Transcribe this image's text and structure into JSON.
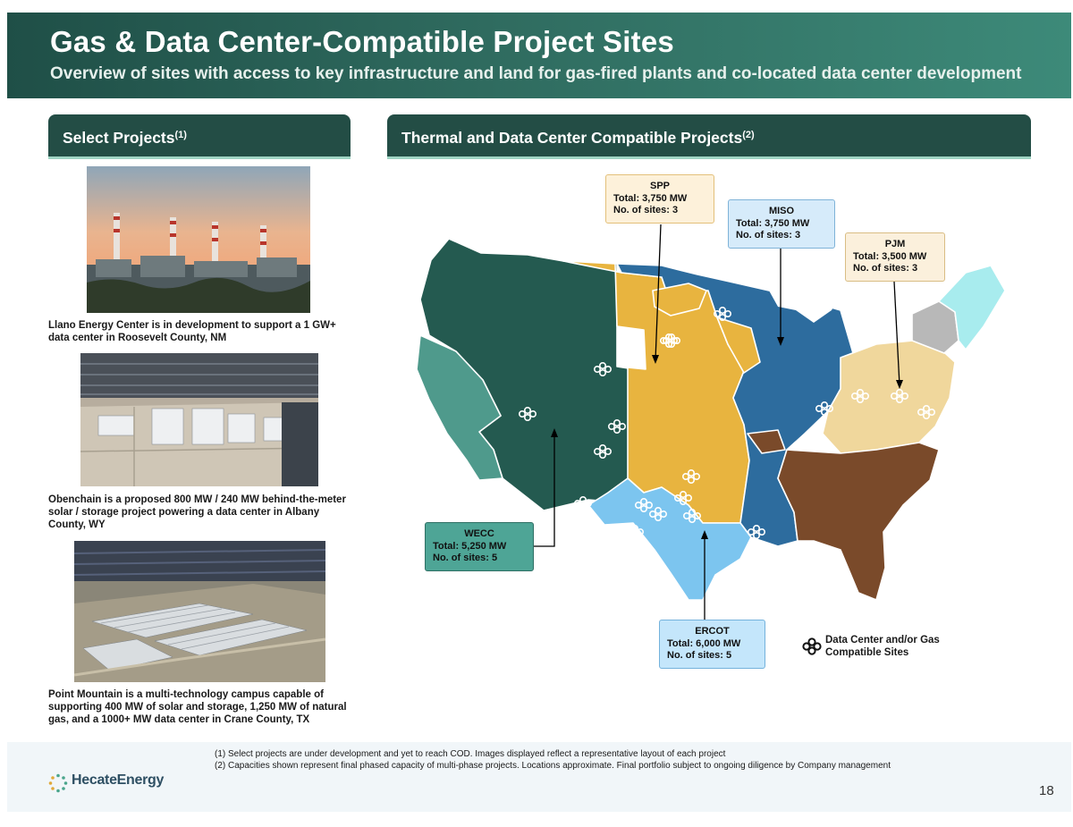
{
  "banner": {
    "title": "Gas & Data Center-Compatible Project Sites",
    "subtitle": "Overview of sites with access to key infrastructure and land for gas-fired plants and co-located data center development"
  },
  "left_section": {
    "header": "Select Projects",
    "header_note": "(1)",
    "projects": [
      {
        "caption": "Llano Energy Center is in development to support a 1 GW+ data center in Roosevelt County, NM"
      },
      {
        "caption": "Obenchain is a proposed 800 MW / 240 MW behind-the-meter solar / storage project powering a data center in Albany County, WY"
      },
      {
        "caption": "Point Mountain is a multi-technology campus capable of supporting 400 MW of solar and storage, 1,250 MW of natural gas, and a 1000+ MW data center in Crane County, TX"
      }
    ]
  },
  "right_section": {
    "header": "Thermal and Data Center Compatible Projects",
    "header_note": "(2)"
  },
  "regions": [
    {
      "name": "SPP",
      "total": "Total: 3,750 MW",
      "sites": "No. of sites: 3",
      "color": "#e8b43f"
    },
    {
      "name": "MISO",
      "total": "Total: 3,750 MW",
      "sites": "No. of sites: 3",
      "color": "#2d6c9e"
    },
    {
      "name": "PJM",
      "total": "Total: 3,500 MW",
      "sites": "No. of sites: 3",
      "color": "#f0d79c"
    },
    {
      "name": "WECC",
      "total": "Total: 5,250 MW",
      "sites": "No. of sites: 5",
      "color": "#245a50"
    },
    {
      "name": "ERCOT",
      "total": "Total: 6,000 MW",
      "sites": "No. of sites: 5",
      "color": "#7cc5ef"
    }
  ],
  "other_region_colors": {
    "caiso": "#4f9a8c",
    "southeast": "#7a4a2a",
    "nyiso": "#b8b8b8",
    "isone": "#a8ecee"
  },
  "legend": {
    "label": "Data Center and/or Gas Compatible Sites",
    "icon": "site-cluster-icon"
  },
  "footnotes": [
    "(1)  Select projects are under development and yet to reach COD. Images displayed reflect a representative layout of each project",
    "(2)  Capacities shown represent final phased capacity of multi-phase projects. Locations approximate. Final portfolio subject to ongoing diligence by Company management"
  ],
  "logo": {
    "text": "HecateEnergy"
  },
  "page_number": "18"
}
